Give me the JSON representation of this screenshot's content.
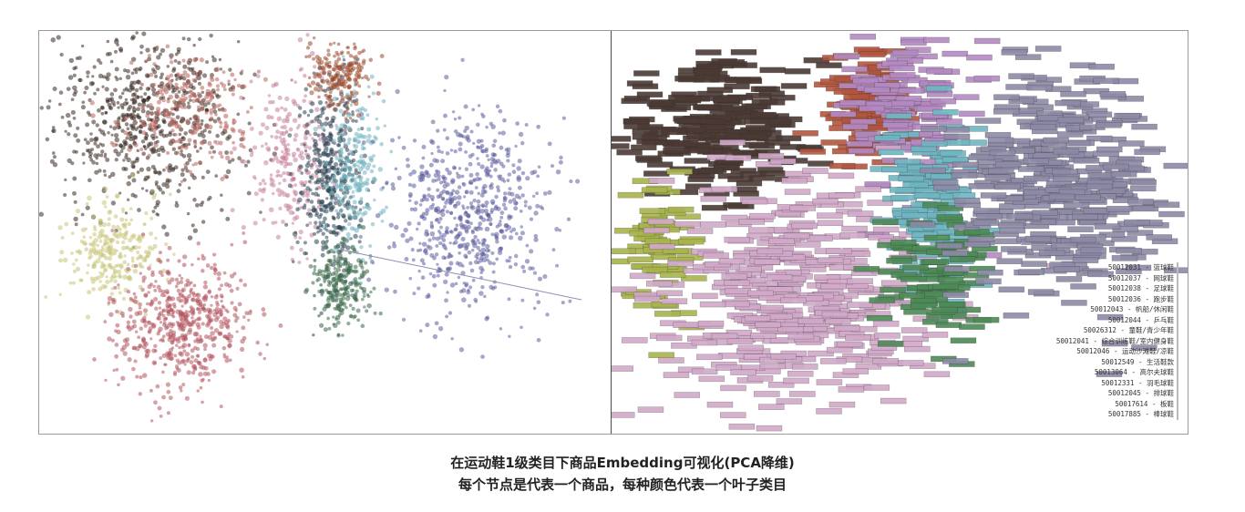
{
  "chart_data": [
    {
      "type": "scatter",
      "title": "",
      "xlabel": "",
      "ylabel": "",
      "grid": false,
      "point_labels": false,
      "clusters": [
        {
          "color": "#3a2a22",
          "cx": -0.62,
          "cy": 0.55,
          "sx": 0.16,
          "sy": 0.22,
          "n": 700
        },
        {
          "color": "#b8655c",
          "cx": -0.48,
          "cy": 0.62,
          "sx": 0.12,
          "sy": 0.14,
          "n": 260
        },
        {
          "color": "#c9c47a",
          "cx": -0.74,
          "cy": -0.1,
          "sx": 0.08,
          "sy": 0.12,
          "n": 260
        },
        {
          "color": "#b35561",
          "cx": -0.5,
          "cy": -0.45,
          "sx": 0.12,
          "sy": 0.16,
          "n": 560
        },
        {
          "color": "#c9819c",
          "cx": -0.12,
          "cy": 0.35,
          "sx": 0.08,
          "sy": 0.2,
          "n": 260
        },
        {
          "color": "#2e4354",
          "cx": 0.02,
          "cy": 0.25,
          "sx": 0.05,
          "sy": 0.25,
          "n": 420
        },
        {
          "color": "#9a4a2e",
          "cx": 0.06,
          "cy": 0.78,
          "sx": 0.05,
          "sy": 0.08,
          "n": 200
        },
        {
          "color": "#6fb3c0",
          "cx": 0.1,
          "cy": 0.3,
          "sx": 0.05,
          "sy": 0.22,
          "n": 220
        },
        {
          "color": "#3d6a4a",
          "cx": 0.06,
          "cy": -0.28,
          "sx": 0.05,
          "sy": 0.1,
          "n": 240
        },
        {
          "color": "#5d5e9e",
          "cx": 0.5,
          "cy": 0.12,
          "sx": 0.13,
          "sy": 0.24,
          "n": 650
        }
      ]
    },
    {
      "type": "scatter",
      "title": "",
      "xlabel": "",
      "ylabel": "",
      "grid": false,
      "point_labels": true,
      "clusters": [
        {
          "color": "#4b3a34",
          "cx": -0.64,
          "cy": 0.52,
          "sx": 0.18,
          "sy": 0.16,
          "n": 240
        },
        {
          "color": "#b3553e",
          "cx": -0.12,
          "cy": 0.62,
          "sx": 0.08,
          "sy": 0.14,
          "n": 110
        },
        {
          "color": "#b48ac2",
          "cx": 0.04,
          "cy": 0.62,
          "sx": 0.1,
          "sy": 0.22,
          "n": 140
        },
        {
          "color": "#a9b44c",
          "cx": -0.82,
          "cy": -0.1,
          "sx": 0.06,
          "sy": 0.18,
          "n": 70
        },
        {
          "color": "#d2a9c9",
          "cx": -0.35,
          "cy": -0.3,
          "sx": 0.24,
          "sy": 0.28,
          "n": 420
        },
        {
          "color": "#6fb6c2",
          "cx": 0.1,
          "cy": 0.15,
          "sx": 0.08,
          "sy": 0.22,
          "n": 120
        },
        {
          "color": "#4c8a56",
          "cx": 0.12,
          "cy": -0.2,
          "sx": 0.08,
          "sy": 0.14,
          "n": 90
        },
        {
          "color": "#8d8aa6",
          "cx": 0.55,
          "cy": 0.25,
          "sx": 0.18,
          "sy": 0.3,
          "n": 380
        }
      ],
      "legend": [
        "50012031 - 篮球鞋",
        "50012037 - 网球鞋",
        "50012038 - 足球鞋",
        "50012036 - 跑步鞋",
        "50012043 - 帆船/休闲鞋",
        "50012044 - 乒乓鞋",
        "50026312 - 童鞋/青少年鞋",
        "50012041 - 综合训练鞋/室内健身鞋",
        "50012046 - 运动沙滩鞋/凉鞋",
        "50012549 - 生活鞋款",
        "50013064 - 高尔夫球鞋",
        "50012331 - 羽毛球鞋",
        "50012045 - 排球鞋",
        "50017614 - 板鞋",
        "50017885 - 棒球鞋"
      ],
      "legend_placement": "bottom-right"
    }
  ],
  "caption": {
    "line1": "在运动鞋1级类目下商品Embedding可视化(PCA降维)",
    "line2": "每个节点是代表一个商品，每种颜色代表一个叶子类目"
  }
}
